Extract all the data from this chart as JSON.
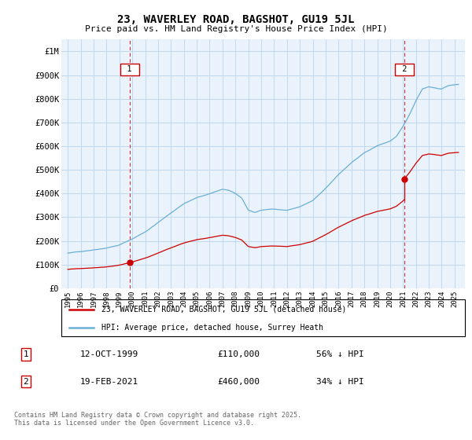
{
  "title": "23, WAVERLEY ROAD, BAGSHOT, GU19 5JL",
  "subtitle": "Price paid vs. HM Land Registry's House Price Index (HPI)",
  "legend_line1": "23, WAVERLEY ROAD, BAGSHOT, GU19 5JL (detached house)",
  "legend_line2": "HPI: Average price, detached house, Surrey Heath",
  "footnote": "Contains HM Land Registry data © Crown copyright and database right 2025.\nThis data is licensed under the Open Government Licence v3.0.",
  "table_rows": [
    {
      "num": "1",
      "date": "12-OCT-1999",
      "price": "£110,000",
      "hpi": "56% ↓ HPI"
    },
    {
      "num": "2",
      "date": "19-FEB-2021",
      "price": "£460,000",
      "hpi": "34% ↓ HPI"
    }
  ],
  "sale1_x": 1999.79,
  "sale1_y": 110000,
  "sale2_x": 2021.12,
  "sale2_y": 460000,
  "hpi_color": "#6baed6",
  "sale_color": "#cc0000",
  "vline_color": "#cc0000",
  "chart_bg": "#eaf3fb",
  "fig_bg": "#ffffff",
  "grid_color": "#c0d8ee",
  "ylim": [
    0,
    1050000
  ],
  "xlim_start": 1994.5,
  "xlim_end": 2025.8,
  "yticks": [
    0,
    100000,
    200000,
    300000,
    400000,
    500000,
    600000,
    700000,
    800000,
    900000,
    1000000
  ],
  "ytick_labels": [
    "£0",
    "£100K",
    "£200K",
    "£300K",
    "£400K",
    "£500K",
    "£600K",
    "£700K",
    "£800K",
    "£900K",
    "£1M"
  ],
  "hpi_knots_x": [
    1995.0,
    1996.0,
    1997.0,
    1998.0,
    1999.0,
    2000.0,
    2001.0,
    2002.0,
    2003.0,
    2004.0,
    2005.0,
    2006.0,
    2007.0,
    2007.5,
    2008.0,
    2008.5,
    2009.0,
    2009.5,
    2010.0,
    2011.0,
    2012.0,
    2013.0,
    2014.0,
    2015.0,
    2016.0,
    2017.0,
    2018.0,
    2019.0,
    2020.0,
    2020.5,
    2021.0,
    2021.5,
    2022.0,
    2022.5,
    2023.0,
    2023.5,
    2024.0,
    2024.5,
    2025.3
  ],
  "hpi_knots_y": [
    148000,
    155000,
    163000,
    172000,
    185000,
    210000,
    240000,
    280000,
    320000,
    360000,
    385000,
    400000,
    420000,
    415000,
    400000,
    380000,
    330000,
    320000,
    330000,
    335000,
    330000,
    345000,
    370000,
    420000,
    480000,
    530000,
    570000,
    600000,
    620000,
    640000,
    680000,
    730000,
    790000,
    840000,
    850000,
    845000,
    840000,
    855000,
    860000
  ]
}
